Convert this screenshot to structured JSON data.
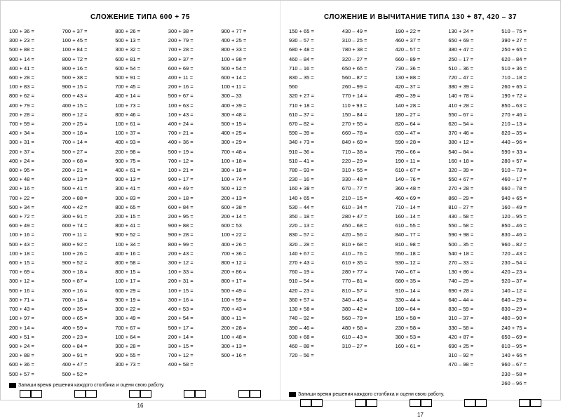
{
  "left": {
    "title": "СЛОЖЕНИЕ ТИПА 600 + 75",
    "columns": [
      [
        "100 + 36 =",
        "300 + 23 =",
        "500 + 88 =",
        "900 + 14 =",
        "400 + 41 =",
        "600 + 28 =",
        "100 + 83 =",
        "800 + 62 =",
        "400 + 79 =",
        "200 + 28 =",
        "700 + 59 =",
        "400 + 34 =",
        "300 + 31 =",
        "200 + 37 =",
        "400 + 24 =",
        "800 + 95 =",
        "900 + 48 =",
        "200 + 16 =",
        "700 + 22 =",
        "500 + 34 =",
        "600 + 72 =",
        "600 + 49 =",
        "100 + 16 =",
        "500 + 43 =",
        "100 + 18 =",
        "600 + 15 =",
        "700 + 69 =",
        "300 + 12 =",
        "500 + 16 =",
        "300 + 71 =",
        "700 + 43 =",
        "100 + 97 =",
        "200 + 14 =",
        "400 + 51 =",
        "900 + 24 =",
        "200 + 88 =",
        "600 + 36 =",
        "500 + 57 ="
      ],
      [
        "700 + 37 =",
        "100 + 45 =",
        "100 + 84 =",
        "800 + 72 =",
        "800 + 16 =",
        "500 + 38 =",
        "900 + 15 =",
        "600 + 43 =",
        "400 + 15 =",
        "800 + 12 =",
        "200 + 25 =",
        "300 + 18 =",
        "700 + 14 =",
        "500 + 27 =",
        "300 + 68 =",
        "200 + 21 =",
        "600 + 13 =",
        "500 + 41 =",
        "200 + 88 =",
        "400 + 42 =",
        "300 + 91 =",
        "600 + 74 =",
        "700 + 11 =",
        "800 + 92 =",
        "100 + 26 =",
        "900 + 52 =",
        "300 + 18 =",
        "500 + 87 =",
        "300 + 16 =",
        "700 + 18 =",
        "600 + 35 =",
        "800 + 65 =",
        "400 + 59 =",
        "200 + 23 =",
        "600 + 84 =",
        "300 + 91 =",
        "400 + 47 =",
        "500 + 52 ="
      ],
      [
        "800 + 26 =",
        "500 + 13 =",
        "300 + 32 =",
        "600 + 81 =",
        "600 + 54 =",
        "500 + 91 =",
        "700 + 45 =",
        "400 + 14 =",
        "100 + 73 =",
        "800 + 46 =",
        "100 + 61 =",
        "100 + 37 =",
        "400 + 93 =",
        "200 + 98 =",
        "900 + 75 =",
        "400 + 61 =",
        "900 + 13 =",
        "300 + 41 =",
        "300 + 83 =",
        "800 + 65 =",
        "200 + 15 =",
        "800 + 41 =",
        "900 + 52 =",
        "100 + 34 =",
        "400 + 16 =",
        "800 + 58 =",
        "800 + 15 =",
        "100 + 17 =",
        "600 + 29 =",
        "900 + 19 =",
        "300 + 22 =",
        "300 + 49 =",
        "700 + 67 =",
        "100 + 64 =",
        "300 + 28 =",
        "900 + 55 =",
        "300 + 73 ="
      ],
      [
        "300 + 38 =",
        "200 + 79 =",
        "700 + 28 =",
        "300 + 37 =",
        "600 + 69 =",
        "400 + 11 =",
        "200 + 16 =",
        "500 + 67 =",
        "100 + 63 =",
        "100 + 43 =",
        "400 + 24 =",
        "700 + 21 =",
        "400 + 36 =",
        "500 + 19 =",
        "700 + 12 =",
        "100 + 21 =",
        "900 + 17 =",
        "400 + 49 =",
        "200 + 18 =",
        "600 + 84 =",
        "200 + 95 =",
        "900 + 88 =",
        "900 + 28 =",
        "800 + 99 =",
        "200 + 43 =",
        "300 + 12 =",
        "100 + 33 =",
        "200 + 31 =",
        "100 + 15 =",
        "300 + 16 =",
        "400 + 53 =",
        "200 + 54 =",
        "500 + 17 =",
        "200 + 14 =",
        "300 + 15 =",
        "700 + 12 =",
        "400 + 58 ="
      ],
      [
        "900 + 77 =",
        "400 + 25 =",
        "800 + 33 =",
        "100 + 98 =",
        "500 + 54 =",
        "600 + 14 =",
        "100 + 11 =",
        "300 – 33 ",
        "400 + 39 =",
        "300 + 48 =",
        "500 + 15 =",
        "400 + 25 =",
        "300 + 29 =",
        "700 + 48 =",
        "100 + 18 =",
        "300 + 18 =",
        "100 + 74 =",
        "500 + 12 =",
        "200 + 13 =",
        "600 + 38 =",
        "200 + 14 =",
        "600 = 53 ",
        "100 + 22 =",
        "400 + 26 =",
        "700 + 36 =",
        "800 + 12 =",
        "200 + 86 =",
        "800 + 17 =",
        "500 + 49 =",
        "100 + 59 =",
        "700 + 43 =",
        "800 + 11 =",
        "200 + 28 =",
        "100 + 48 =",
        "300 + 13 =",
        "500 + 16 ="
      ]
    ],
    "footer": "Запиши время решения каждого столбика и оцени свою работу.",
    "pageNum": "16"
  },
  "right": {
    "title": "СЛОЖЕНИЕ И ВЫЧИТАНИЕ ТИПА 130 + 87, 420 – 37",
    "columns": [
      [
        "150 + 65 =",
        "930 – 57 =",
        "680 + 48 =",
        "460 – 84 =",
        "710 – 16 =",
        "830 – 35 =",
        "560 ",
        "320 + 27 =",
        "710 + 18 =",
        "610 – 37 =",
        "670 – 82 =",
        "590 – 39 =",
        "340 + 73 =",
        "910 – 36 =",
        "510 – 41 =",
        "780 – 93 =",
        "230 – 16 =",
        "160 + 38 =",
        "140 + 65 =",
        "530 – 44 =",
        "350 – 18 =",
        "220 – 13 =",
        "830 – 57 =",
        "320 – 28 =",
        "140 + 67 =",
        "270 + 43 =",
        "760 – 19 =",
        "910 – 54 =",
        "420 – 23 =",
        "360 + 57 =",
        "130 + 58 =",
        "740 – 92 =",
        "390 – 46 =",
        "930 + 68 =",
        "460 – 88 =",
        "720 – 56 ="
      ],
      [
        "430 – 49 =",
        "310 – 25 =",
        "780 + 38 =",
        "320 – 27 =",
        "650 + 65 =",
        "560 – 87 =",
        "260 – 99 =",
        "770 + 14 =",
        "110 + 93 =",
        "150 – 84 =",
        "270 + 55 =",
        "660 – 78 =",
        "840 + 69 =",
        "710 – 38 =",
        "220 – 29 =",
        "310 + 55 =",
        "330 – 48 =",
        "670 – 77 =",
        "210 – 15 =",
        "610 – 34 =",
        "280 + 47 =",
        "450 – 68 =",
        "420 – 56 =",
        "810 + 68 =",
        "410 – 76 =",
        "610 + 35 =",
        "280 + 77 =",
        "770 – 81 =",
        "810 – 57 =",
        "340 – 45 =",
        "380 – 42 =",
        "560 – 79 =",
        "480 + 58 =",
        "610 – 43 =",
        "310 – 27 ="
      ],
      [
        "190 + 22 =",
        "460 + 37 =",
        "420 – 57 =",
        "660 – 89 =",
        "730 – 36 =",
        "130 + 88 =",
        "420 – 37 =",
        "490 – 39 =",
        "140 + 28 =",
        "180 – 27 =",
        "820 – 64 =",
        "630 – 47 =",
        "590 + 28 =",
        "750 – 66 =",
        "190 + 11 =",
        "610 + 67 =",
        "140 – 76 =",
        "360 + 48 =",
        "460 + 69 =",
        "710 – 14 =",
        "160 – 14 =",
        "610 – 55 =",
        "840 – 77 =",
        "810 – 98 =",
        "550 – 18 =",
        "930 – 12 =",
        "740 – 67 =",
        "680 + 35 =",
        "910 – 14 =",
        "330 – 44 =",
        "180 – 64 =",
        "150 + 58 =",
        "230 + 58 =",
        "380 + 53 =",
        "160 + 61 ="
      ],
      [
        "130 + 24 =",
        "650 + 69 =",
        "380 + 47 =",
        "250 – 17 =",
        "510 – 36 =",
        "720 – 47 =",
        "380 + 39 =",
        "140 + 78 =",
        "410 + 28 =",
        "550 – 67 =",
        "620 – 54 =",
        "370 + 46 =",
        "380 + 12 =",
        "540 – 84 =",
        "160 + 18 =",
        "320 – 39 =",
        "550 + 67 =",
        "270 + 28 =",
        "860 – 29 =",
        "810 – 27 =",
        "430 – 58 =",
        "550 – 58 =",
        "590 + 98 =",
        "500 – 35 =",
        "540 + 18 =",
        "270 – 33 =",
        "130 + 86 =",
        "740 – 29 =",
        "690 + 28 =",
        "640 – 44 =",
        "830 – 59 =",
        "310 – 37 =",
        "330 – 58 =",
        "420 + 87 =",
        "690 + 25 =",
        "310 – 92 =",
        "470 – 98 ="
      ],
      [
        "510 – 75 =",
        "390 + 27 =",
        "250 + 65 =",
        "620 – 84 =",
        "510 + 36 =",
        "710 – 18 =",
        "260 + 65 =",
        "190 + 72 =",
        "850 – 63 =",
        "270 + 46 =",
        "210 – 13 =",
        "820 – 35 =",
        "440 – 96 =",
        "590 + 33 =",
        "280 + 57 =",
        "910 – 73 =",
        "460 – 17 =",
        "660 – 78 =",
        "940 + 65 =",
        "160 – 49 =",
        "120 – 95 =",
        "850 – 46 =",
        "830 – 46 =",
        "960 – 82 =",
        "720 – 43 =",
        "230 – 54 =",
        "420 – 23 =",
        "920 – 37 =",
        "140 – 12 =",
        "640 – 29 =",
        "830 – 29 =",
        "480 – 90 =",
        "240 + 75 =",
        "650 – 69 =",
        "810 – 95 =",
        "140 + 66 =",
        "960 – 67 =",
        "230 – 58 =",
        "260 – 96 ="
      ]
    ],
    "footer": "Запиши время решения каждого столбика и оцени свою работу.",
    "pageNum": "17"
  }
}
